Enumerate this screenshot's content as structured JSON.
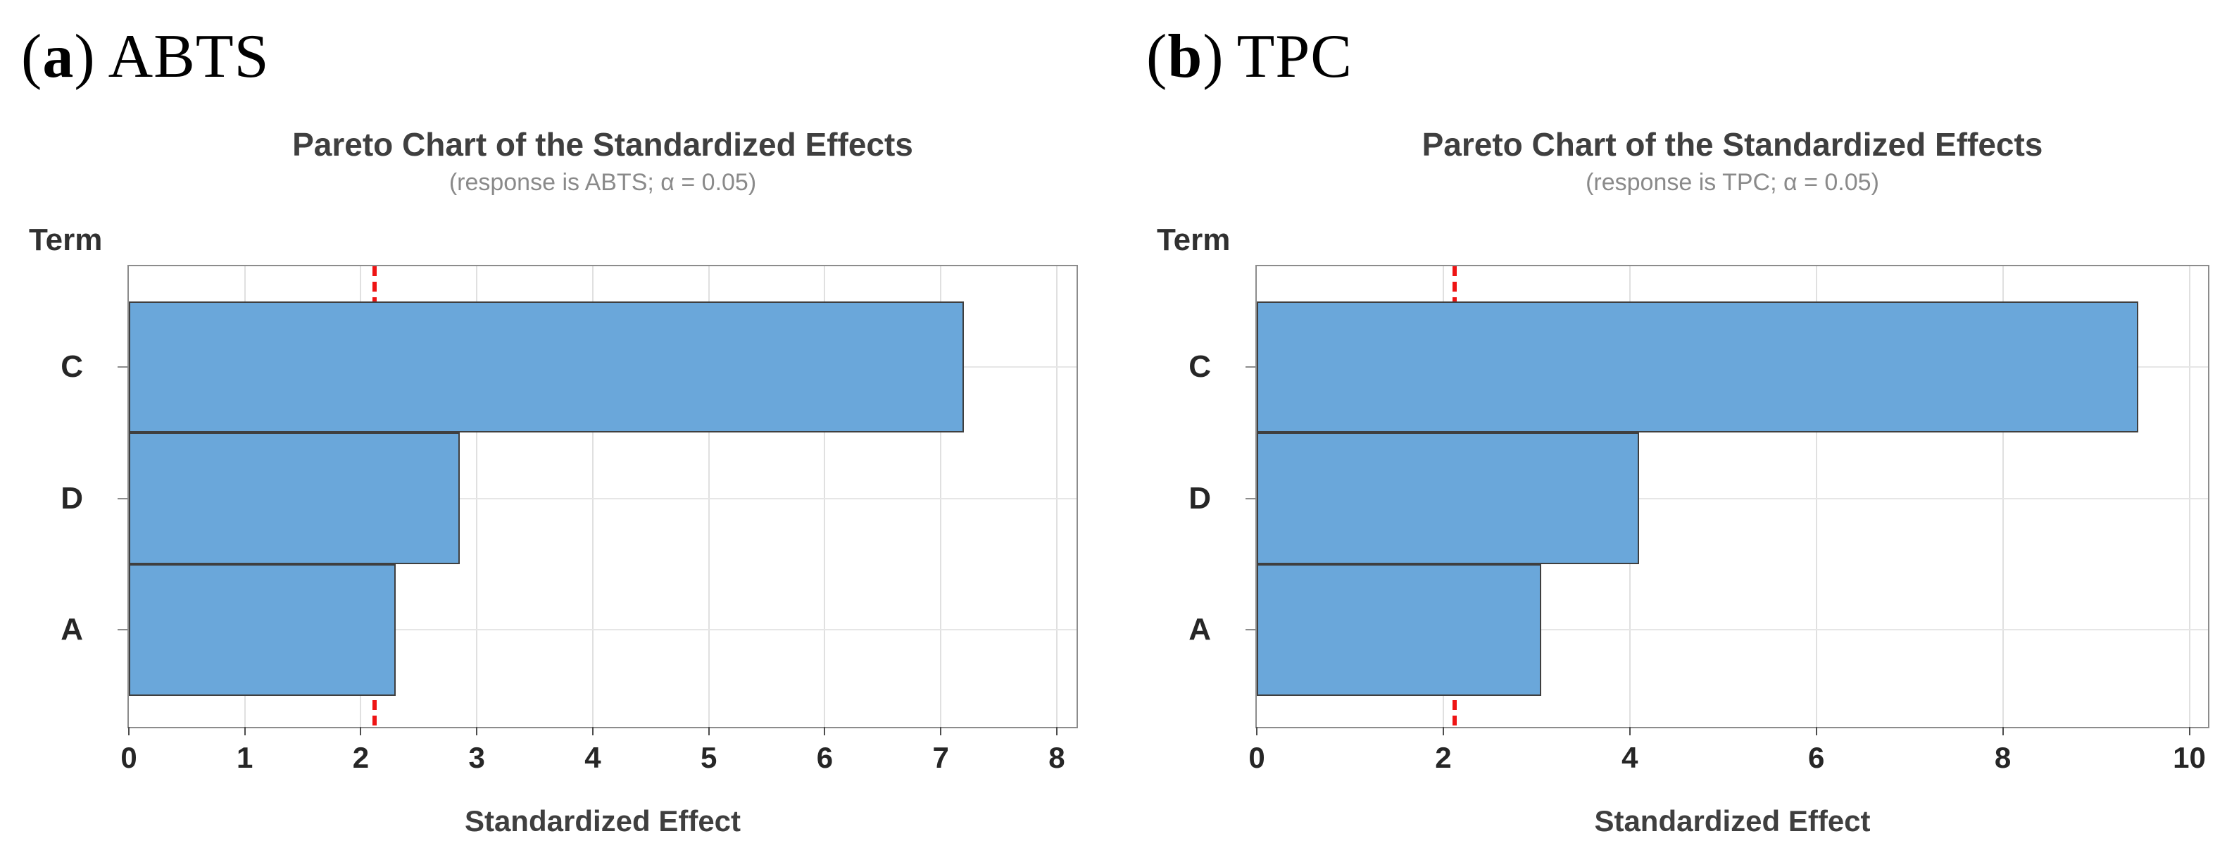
{
  "figure": {
    "panels": [
      {
        "label": {
          "open": "(",
          "letter": "a",
          "close": ")",
          "name": "ABTS"
        }
      },
      {
        "label": {
          "open": "(",
          "letter": "b",
          "close": ")",
          "name": "TPC"
        }
      }
    ]
  },
  "colors": {
    "bar_fill": "#6aa7da",
    "bar_border": "#3f3f3f",
    "reference_line": "#ee1414",
    "plot_border": "#8c8c8c",
    "gridline": "#e0e0e0",
    "title_text": "#3f3f3f",
    "subtitle_text": "#8a8a8a",
    "tick_text": "#262626"
  },
  "chart_data": [
    {
      "type": "bar",
      "orientation": "horizontal",
      "title": "Pareto Chart of the Standardized Effects",
      "subtitle": "(response is ABTS; α = 0.05)",
      "ylabel": "Term",
      "xlabel": "Standardized Effect",
      "categories": [
        "C",
        "D",
        "A"
      ],
      "values": [
        7.2,
        2.85,
        2.3
      ],
      "reference_line": {
        "value": 2.12,
        "style": "dashed",
        "color": "#ee1414"
      },
      "xlim": [
        0,
        8.17
      ],
      "xticks": [
        0,
        1,
        2,
        3,
        4,
        5,
        6,
        7,
        8
      ],
      "grid": true,
      "legend": "none",
      "bar_color": "#6aa7da",
      "bar_border_color": "#3f3f3f"
    },
    {
      "type": "bar",
      "orientation": "horizontal",
      "title": "Pareto Chart of the Standardized Effects",
      "subtitle": "(response is TPC; α = 0.05)",
      "ylabel": "Term",
      "xlabel": "Standardized Effect",
      "categories": [
        "C",
        "D",
        "A"
      ],
      "values": [
        9.45,
        4.1,
        3.05
      ],
      "reference_line": {
        "value": 2.12,
        "style": "dashed",
        "color": "#ee1414"
      },
      "xlim": [
        0,
        10.2
      ],
      "xticks": [
        0,
        2,
        4,
        6,
        8,
        10
      ],
      "grid": true,
      "legend": "none",
      "bar_color": "#6aa7da",
      "bar_border_color": "#3f3f3f"
    }
  ]
}
